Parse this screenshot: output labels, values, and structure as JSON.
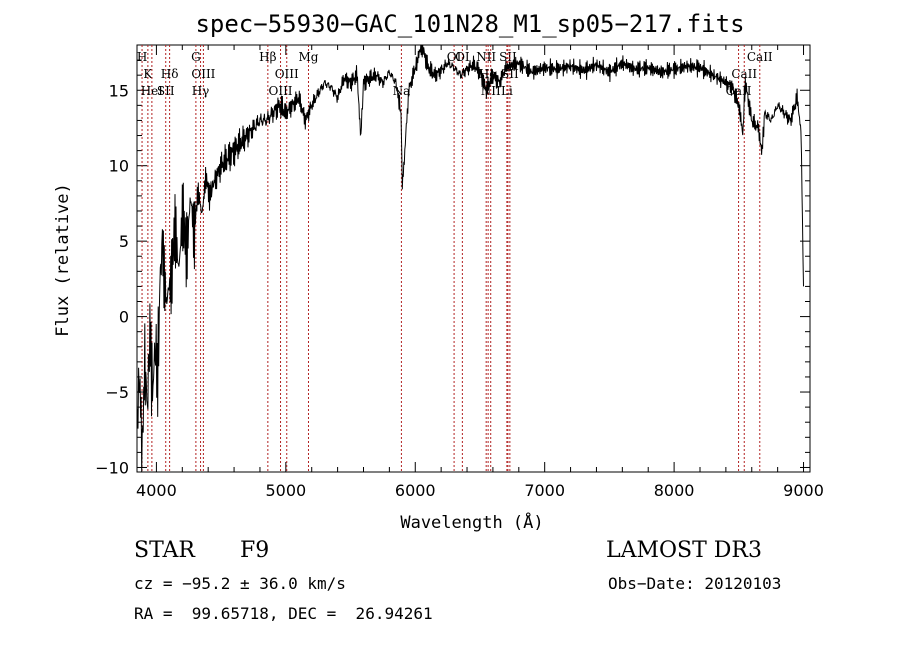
{
  "chart_data": {
    "type": "line",
    "title": "spec−55930−GAC_101N28_M1_sp05−217.fits",
    "xlabel": "Wavelength (Å)",
    "ylabel": "Flux (relative)",
    "xlim": [
      3850,
      9050
    ],
    "ylim": [
      -10.3,
      18
    ],
    "x_ticks": [
      4000,
      5000,
      6000,
      7000,
      8000,
      9000
    ],
    "y_ticks": [
      -10,
      -5,
      0,
      5,
      10,
      15
    ],
    "series": [
      {
        "name": "spectrum",
        "x": [
          3850,
          3870,
          3890,
          3910,
          3930,
          3950,
          3970,
          3990,
          4010,
          4030,
          4050,
          4080,
          4110,
          4140,
          4170,
          4200,
          4230,
          4260,
          4290,
          4320,
          4350,
          4380,
          4410,
          4450,
          4500,
          4550,
          4600,
          4650,
          4700,
          4750,
          4800,
          4850,
          4900,
          4950,
          5000,
          5050,
          5100,
          5150,
          5200,
          5250,
          5300,
          5350,
          5400,
          5450,
          5500,
          5550,
          5580,
          5600,
          5650,
          5700,
          5750,
          5800,
          5850,
          5890,
          5900,
          5950,
          6000,
          6020,
          6050,
          6100,
          6150,
          6200,
          6250,
          6300,
          6350,
          6400,
          6450,
          6500,
          6550,
          6600,
          6650,
          6700,
          6800,
          6900,
          7000,
          7100,
          7200,
          7300,
          7400,
          7500,
          7600,
          7700,
          7800,
          7900,
          8000,
          8100,
          8200,
          8300,
          8400,
          8450,
          8500,
          8530,
          8550,
          8600,
          8650,
          8680,
          8700,
          8750,
          8800,
          8850,
          8900,
          8950,
          8980,
          9000
        ],
        "y": [
          -7,
          -4,
          -9,
          -3,
          -6,
          -1,
          -5,
          -2,
          -4,
          3,
          5,
          0,
          3,
          5,
          4,
          6,
          5,
          7,
          6,
          8,
          7,
          9,
          8,
          9,
          10,
          10.5,
          11,
          11.5,
          12,
          12.5,
          13,
          13,
          13.5,
          14,
          13.5,
          14,
          14.5,
          13,
          14,
          14.8,
          15.5,
          15.2,
          14.5,
          15.8,
          15.5,
          16,
          12,
          15.5,
          15.8,
          16,
          15.5,
          16.2,
          15.5,
          13.5,
          8.5,
          15,
          16.5,
          17,
          18,
          16.5,
          16,
          16.3,
          16.8,
          16.5,
          16,
          16.4,
          16.7,
          16.2,
          15,
          16,
          15.5,
          16.5,
          16.8,
          16.2,
          16.5,
          16.4,
          16.6,
          16.3,
          16.7,
          16.2,
          16.8,
          16.4,
          16.5,
          16.2,
          16.4,
          16.6,
          16.5,
          16,
          15.5,
          15.2,
          14,
          12,
          15.5,
          13,
          12.5,
          11,
          13.5,
          13,
          14,
          13.5,
          13,
          14.5,
          12.5,
          2
        ]
      }
    ],
    "lines": [
      {
        "label": "H",
        "wave": 3889,
        "row": 0
      },
      {
        "label": "K",
        "wave": 3934,
        "row": 1
      },
      {
        "label": "HeI",
        "wave": 3965,
        "row": 2
      },
      {
        "label": "SII",
        "wave": 4072,
        "row": 2
      },
      {
        "label": "Hδ",
        "wave": 4102,
        "row": 1
      },
      {
        "label": "G",
        "wave": 4305,
        "row": 0
      },
      {
        "label": "OIII",
        "wave": 4363,
        "row": 1
      },
      {
        "label": "Hγ",
        "wave": 4341,
        "row": 2
      },
      {
        "label": "Hβ",
        "wave": 4861,
        "row": 0
      },
      {
        "label": "OIII",
        "wave": 5007,
        "row": 1
      },
      {
        "label": "OIII",
        "wave": 4959,
        "row": 2
      },
      {
        "label": "Mg",
        "wave": 5175,
        "row": 0
      },
      {
        "label": "Na",
        "wave": 5893,
        "row": 2
      },
      {
        "label": "OI",
        "wave": 6300,
        "row": 0
      },
      {
        "label": "OI",
        "wave": 6364,
        "row": 0
      },
      {
        "label": "NII",
        "wave": 6548,
        "row": 0
      },
      {
        "label": "NII",
        "wave": 6583,
        "row": 2
      },
      {
        "label": "Hα",
        "wave": 6563,
        "row": 1
      },
      {
        "label": "SII",
        "wave": 6716,
        "row": 0
      },
      {
        "label": "Li",
        "wave": 6708,
        "row": 2
      },
      {
        "label": "SII",
        "wave": 6731,
        "row": 1
      },
      {
        "label": "CaII",
        "wave": 8662,
        "row": 0
      },
      {
        "label": "CaII",
        "wave": 8542,
        "row": 1
      },
      {
        "label": "CaII",
        "wave": 8498,
        "row": 2
      }
    ],
    "line_color": "#b22222",
    "trace_color": "#000000"
  },
  "info": {
    "object_class": "STAR",
    "subclass": "F9",
    "survey": "LAMOST DR3",
    "redshift_text": "cz = −95.2 ± 36.0 km/s",
    "obs_date_text": "Obs−Date: 20120103",
    "coords_text": "RA =  99.65718, DEC =  26.94261"
  }
}
